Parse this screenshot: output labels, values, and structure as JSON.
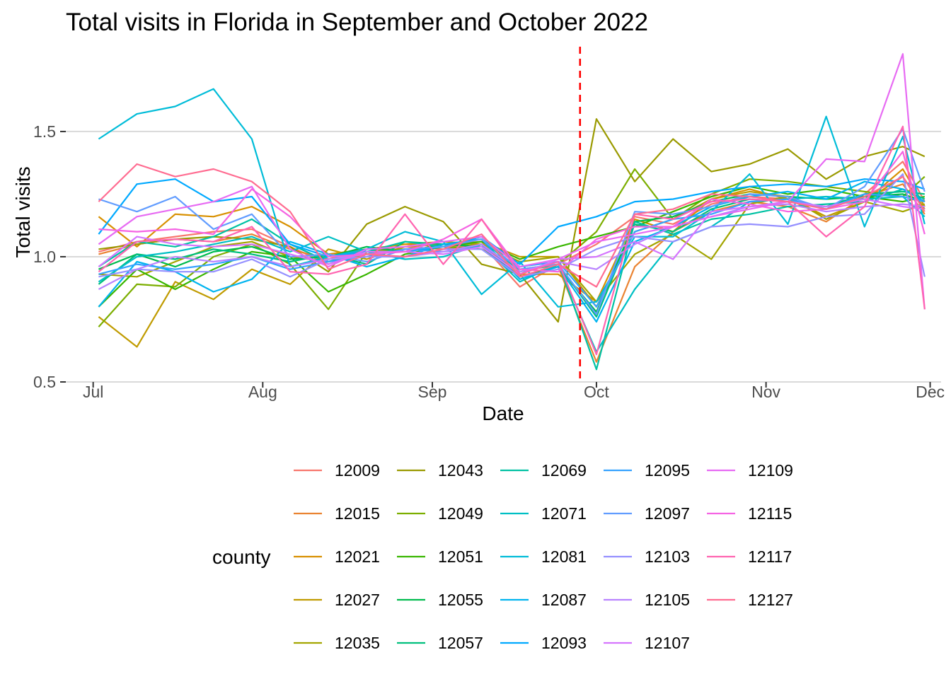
{
  "chart_data": {
    "type": "line",
    "title": "Total visits in Florida in September and October 2022",
    "xlabel": "Date",
    "ylabel": "Total visits",
    "legend_title": "county",
    "legend_placement": "bottom",
    "grid": {
      "horizontal": true,
      "vertical": false
    },
    "xlim": [
      "2022-06-26",
      "2022-12-03"
    ],
    "ylim": [
      0.5,
      1.85
    ],
    "x_ticks": [
      {
        "date": "2022-07-01",
        "label": "Jul"
      },
      {
        "date": "2022-08-01",
        "label": "Aug"
      },
      {
        "date": "2022-09-01",
        "label": "Sep"
      },
      {
        "date": "2022-10-01",
        "label": "Oct"
      },
      {
        "date": "2022-11-01",
        "label": "Nov"
      },
      {
        "date": "2022-12-01",
        "label": "Dec"
      }
    ],
    "y_ticks": [
      {
        "value": 0.5,
        "label": "0.5"
      },
      {
        "value": 1.0,
        "label": "1.0"
      },
      {
        "value": 1.5,
        "label": "1.5"
      }
    ],
    "reference_line": {
      "date": "2022-09-28",
      "color": "#ff0000",
      "style": "dashed"
    },
    "x": [
      "2022-07-02",
      "2022-07-09",
      "2022-07-16",
      "2022-07-23",
      "2022-07-30",
      "2022-08-06",
      "2022-08-13",
      "2022-08-20",
      "2022-08-27",
      "2022-09-03",
      "2022-09-10",
      "2022-09-17",
      "2022-09-24",
      "2022-10-01",
      "2022-10-08",
      "2022-10-15",
      "2022-10-22",
      "2022-10-29",
      "2022-11-05",
      "2022-11-12",
      "2022-11-19",
      "2022-11-26",
      "2022-11-30"
    ],
    "series": [
      {
        "name": "12009",
        "color": "#F8766D",
        "values": [
          1.02,
          1.06,
          1.08,
          1.1,
          1.11,
          1.04,
          0.97,
          1.02,
          1.04,
          1.03,
          1.05,
          0.88,
          0.97,
          1.05,
          1.16,
          1.13,
          1.21,
          1.24,
          1.23,
          1.19,
          1.25,
          1.38,
          1.22
        ]
      },
      {
        "name": "12015",
        "color": "#EA8331",
        "values": [
          1.01,
          1.05,
          1.07,
          1.06,
          1.09,
          1.03,
          0.99,
          1.03,
          1.05,
          1.04,
          1.06,
          0.92,
          0.96,
          0.58,
          0.96,
          1.1,
          1.18,
          1.22,
          1.2,
          1.14,
          1.24,
          1.29,
          1.17
        ]
      },
      {
        "name": "12021",
        "color": "#D89000",
        "values": [
          1.16,
          1.04,
          1.17,
          1.16,
          1.2,
          1.12,
          1.01,
          1.03,
          1.05,
          1.06,
          1.05,
          0.93,
          0.93,
          0.82,
          1.15,
          1.1,
          1.23,
          1.27,
          1.23,
          1.16,
          1.22,
          1.35,
          1.2
        ]
      },
      {
        "name": "12027",
        "color": "#C09B00",
        "values": [
          0.76,
          0.64,
          0.9,
          0.83,
          0.95,
          0.89,
          1.03,
          0.99,
          1.04,
          1.05,
          1.06,
          1.0,
          1.0,
          0.8,
          1.1,
          1.15,
          1.23,
          1.26,
          1.24,
          1.16,
          1.22,
          1.32,
          1.19
        ]
      },
      {
        "name": "12035",
        "color": "#A3A500",
        "values": [
          0.93,
          0.92,
          0.98,
          1.04,
          1.06,
          1.0,
          0.98,
          1.01,
          1.03,
          1.04,
          1.05,
          0.98,
          1.0,
          0.82,
          1.01,
          1.09,
          0.99,
          1.21,
          1.24,
          1.15,
          1.22,
          1.18,
          1.21
        ]
      },
      {
        "name": "12043",
        "color": "#9A9A00",
        "values": [
          1.03,
          1.05,
          1.07,
          1.08,
          1.07,
          1.04,
          0.94,
          1.13,
          1.2,
          1.14,
          0.97,
          0.93,
          0.74,
          1.55,
          1.3,
          1.47,
          1.34,
          1.37,
          1.43,
          1.31,
          1.4,
          1.44,
          1.4
        ]
      },
      {
        "name": "12049",
        "color": "#7CAE00",
        "values": [
          0.72,
          0.89,
          0.88,
          1.0,
          1.05,
          0.97,
          0.79,
          1.02,
          1.03,
          1.04,
          1.03,
          0.95,
          0.97,
          1.1,
          1.35,
          1.15,
          1.25,
          1.31,
          1.3,
          1.28,
          1.26,
          1.24,
          1.32
        ]
      },
      {
        "name": "12051",
        "color": "#39B600",
        "values": [
          0.8,
          0.95,
          0.87,
          0.95,
          1.02,
          1.0,
          0.86,
          0.93,
          1.01,
          1.04,
          1.06,
          0.99,
          1.04,
          1.08,
          1.12,
          1.18,
          1.24,
          1.28,
          1.25,
          1.27,
          1.24,
          1.22,
          1.24
        ]
      },
      {
        "name": "12055",
        "color": "#00BB4E",
        "values": [
          0.95,
          1.01,
          0.96,
          1.02,
          1.04,
          0.99,
          1.0,
          1.04,
          1.02,
          1.05,
          1.04,
          0.92,
          0.96,
          0.78,
          1.14,
          1.16,
          1.22,
          1.25,
          1.24,
          1.23,
          1.24,
          1.25,
          1.22
        ]
      },
      {
        "name": "12057",
        "color": "#00BF7D",
        "values": [
          0.89,
          1.01,
          0.99,
          1.03,
          1.01,
          0.98,
          1.01,
          0.97,
          1.06,
          1.05,
          1.07,
          0.94,
          0.97,
          0.76,
          1.13,
          1.1,
          1.19,
          1.23,
          1.22,
          1.2,
          1.25,
          1.26,
          1.25
        ]
      },
      {
        "name": "12069",
        "color": "#00C1A3",
        "values": [
          0.96,
          1.06,
          1.04,
          1.08,
          1.15,
          1.05,
          0.98,
          1.02,
          1.06,
          1.04,
          1.08,
          0.94,
          0.98,
          0.55,
          1.14,
          1.09,
          1.15,
          1.17,
          1.2,
          1.21,
          1.22,
          1.27,
          1.23
        ]
      },
      {
        "name": "12071",
        "color": "#00BFC4",
        "values": [
          0.9,
          1.0,
          1.02,
          1.05,
          1.08,
          1.02,
          1.08,
          1.02,
          0.99,
          1.0,
          1.05,
          0.9,
          0.97,
          0.62,
          0.87,
          1.06,
          1.12,
          1.22,
          1.23,
          1.24,
          1.23,
          1.24,
          1.16
        ]
      },
      {
        "name": "12081",
        "color": "#00BCD8",
        "values": [
          1.47,
          1.57,
          1.6,
          1.67,
          1.47,
          0.96,
          1.0,
          1.03,
          1.1,
          1.06,
          0.85,
          0.98,
          0.8,
          0.82,
          1.08,
          1.08,
          1.18,
          1.33,
          1.13,
          1.56,
          1.12,
          1.48,
          1.13
        ]
      },
      {
        "name": "12087",
        "color": "#00B4EF",
        "values": [
          0.8,
          0.98,
          0.94,
          0.86,
          0.91,
          1.06,
          1.01,
          0.96,
          1.0,
          1.05,
          1.07,
          0.91,
          0.96,
          0.74,
          1.06,
          1.12,
          1.2,
          1.24,
          1.26,
          1.23,
          1.3,
          1.27,
          1.22
        ]
      },
      {
        "name": "12093",
        "color": "#00A9FF",
        "values": [
          1.09,
          1.29,
          1.31,
          1.22,
          1.24,
          1.05,
          1.0,
          1.02,
          1.02,
          1.04,
          1.08,
          0.97,
          1.12,
          1.16,
          1.22,
          1.23,
          1.26,
          1.28,
          1.29,
          1.28,
          1.31,
          1.3,
          1.27
        ]
      },
      {
        "name": "12095",
        "color": "#35A2FF",
        "values": [
          0.93,
          0.97,
          0.95,
          0.97,
          1.0,
          0.95,
          0.98,
          1.0,
          1.03,
          1.02,
          1.04,
          0.96,
          0.98,
          0.8,
          1.1,
          1.15,
          1.17,
          1.22,
          1.23,
          1.19,
          1.25,
          1.24,
          1.22
        ]
      },
      {
        "name": "12097",
        "color": "#619CFF",
        "values": [
          1.23,
          1.18,
          1.24,
          1.11,
          1.17,
          1.0,
          1.01,
          0.98,
          1.03,
          1.04,
          1.07,
          0.95,
          0.97,
          0.77,
          1.18,
          1.17,
          1.2,
          1.25,
          1.24,
          1.19,
          1.28,
          1.51,
          1.26
        ]
      },
      {
        "name": "12103",
        "color": "#9590FF",
        "values": [
          0.92,
          0.95,
          0.94,
          0.94,
          0.99,
          0.92,
          0.99,
          1.0,
          1.0,
          1.03,
          1.03,
          0.92,
          0.95,
          1.03,
          1.08,
          1.06,
          1.12,
          1.13,
          1.12,
          1.16,
          1.17,
          1.33,
          0.92
        ]
      },
      {
        "name": "12105",
        "color": "#B983FF",
        "values": [
          0.87,
          0.95,
          1.0,
          0.98,
          1.0,
          0.96,
          0.99,
          1.01,
          1.0,
          1.02,
          1.05,
          0.94,
          0.98,
          0.95,
          1.05,
          1.12,
          1.16,
          1.2,
          1.21,
          1.18,
          1.2,
          1.21,
          1.2
        ]
      },
      {
        "name": "12107",
        "color": "#D575FE",
        "values": [
          0.96,
          1.08,
          1.05,
          1.04,
          1.05,
          1.01,
          0.97,
          1.02,
          1.02,
          1.01,
          1.04,
          0.93,
          0.99,
          1.0,
          1.06,
          0.99,
          1.18,
          1.2,
          1.22,
          1.2,
          1.23,
          1.2,
          1.19
        ]
      },
      {
        "name": "12109",
        "color": "#E76BF3",
        "values": [
          1.05,
          1.16,
          1.19,
          1.22,
          1.28,
          1.03,
          0.96,
          1.03,
          1.04,
          1.06,
          1.08,
          0.96,
          0.99,
          1.06,
          1.09,
          1.12,
          1.16,
          1.19,
          1.22,
          1.39,
          1.38,
          1.81,
          0.79
        ]
      },
      {
        "name": "12115",
        "color": "#F564E3",
        "values": [
          1.11,
          1.1,
          1.11,
          1.09,
          1.27,
          1.16,
          1.0,
          1.01,
          1.02,
          1.07,
          1.15,
          0.95,
          0.94,
          1.07,
          1.12,
          1.12,
          1.23,
          1.21,
          1.18,
          1.19,
          1.22,
          1.42,
          1.09
        ]
      },
      {
        "name": "12117",
        "color": "#FF64B0",
        "values": [
          0.94,
          1.06,
          1.07,
          1.06,
          1.12,
          0.94,
          0.93,
          0.97,
          1.17,
          0.97,
          1.15,
          0.93,
          0.98,
          0.61,
          1.17,
          1.15,
          1.22,
          1.23,
          1.22,
          1.08,
          1.2,
          1.52,
          0.79
        ]
      },
      {
        "name": "12127",
        "color": "#FF6C91",
        "values": [
          1.22,
          1.37,
          1.32,
          1.35,
          1.3,
          1.18,
          0.95,
          1.01,
          1.0,
          1.03,
          1.09,
          0.92,
          0.97,
          0.88,
          1.17,
          1.19,
          1.25,
          1.24,
          1.22,
          1.19,
          1.24,
          1.32,
          1.18
        ]
      }
    ]
  }
}
